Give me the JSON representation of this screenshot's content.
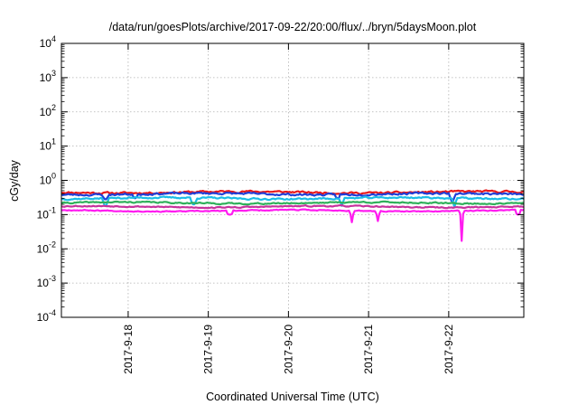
{
  "chart_data": {
    "type": "line",
    "title": "/data/run/goesPlots/archive/2017-09-22/20:00/flux/../bryn/5daysMoon.plot",
    "xlabel": "Coordinated Universal Time (UTC)",
    "ylabel": "cGy/day",
    "y_scale": "log",
    "ylim": [
      0.0001,
      10000
    ],
    "xlim": [
      0,
      5.77
    ],
    "x_unit": "days since 2017-09-17 04:00 UTC",
    "x_ticks": [
      {
        "value": 0.833,
        "label": "2017-9-18"
      },
      {
        "value": 1.833,
        "label": "2017-9-19"
      },
      {
        "value": 2.833,
        "label": "2017-9-20"
      },
      {
        "value": 3.833,
        "label": "2017-9-21"
      },
      {
        "value": 4.833,
        "label": "2017-9-22"
      }
    ],
    "y_ticks": [
      {
        "value": 0.0001,
        "base": "10",
        "exp": "-4"
      },
      {
        "value": 0.001,
        "base": "10",
        "exp": "-3"
      },
      {
        "value": 0.01,
        "base": "10",
        "exp": "-2"
      },
      {
        "value": 0.1,
        "base": "10",
        "exp": "-1"
      },
      {
        "value": 1,
        "base": "10",
        "exp": "0"
      },
      {
        "value": 10,
        "base": "10",
        "exp": "1"
      },
      {
        "value": 100,
        "base": "10",
        "exp": "2"
      },
      {
        "value": 1000,
        "base": "10",
        "exp": "3"
      },
      {
        "value": 10000,
        "base": "10",
        "exp": "4"
      }
    ],
    "grid": true,
    "legend": "none",
    "series": [
      {
        "color": "#e8191c",
        "base": 0.45,
        "noise": 0.06,
        "seed": 11,
        "dips": []
      },
      {
        "color": "#1f3fd8",
        "base": 0.4,
        "noise": 0.06,
        "seed": 23,
        "dips": [
          {
            "x": 0.55,
            "y": 0.28
          },
          {
            "x": 0.92,
            "y": 0.3
          },
          {
            "x": 3.45,
            "y": 0.3
          },
          {
            "x": 4.88,
            "y": 0.25
          }
        ]
      },
      {
        "color": "#1bbde6",
        "base": 0.3,
        "noise": 0.05,
        "seed": 37,
        "dips": [
          {
            "x": 0.55,
            "y": 0.18
          },
          {
            "x": 1.65,
            "y": 0.2
          },
          {
            "x": 3.5,
            "y": 0.18
          },
          {
            "x": 4.9,
            "y": 0.16
          }
        ]
      },
      {
        "color": "#2fb05a",
        "base": 0.22,
        "noise": 0.04,
        "seed": 41,
        "dips": []
      },
      {
        "color": "#c7329d",
        "base": 0.17,
        "noise": 0.035,
        "seed": 53,
        "dips": []
      },
      {
        "color": "#ff1cf0",
        "base": 0.13,
        "noise": 0.03,
        "seed": 67,
        "dips": [
          {
            "x": 2.1,
            "y": 0.1
          },
          {
            "x": 3.63,
            "y": 0.06
          },
          {
            "x": 3.95,
            "y": 0.065
          },
          {
            "x": 5.0,
            "y": 0.017
          },
          {
            "x": 5.7,
            "y": 0.1
          }
        ]
      }
    ]
  }
}
